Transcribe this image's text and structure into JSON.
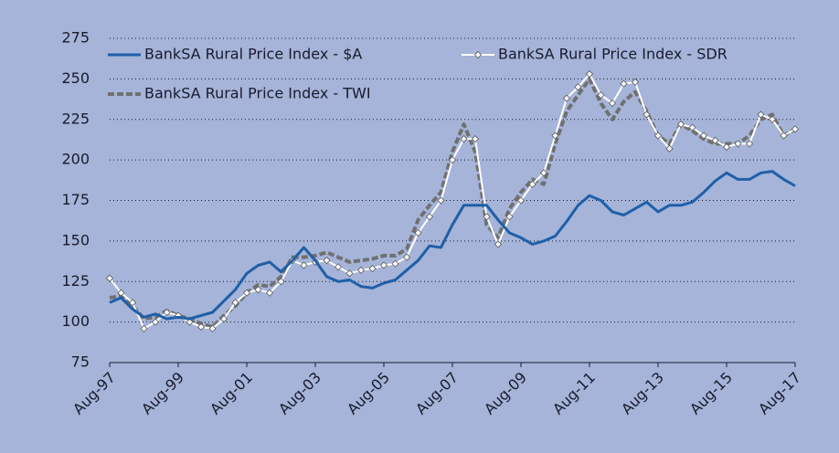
{
  "chart_data": {
    "type": "line",
    "categories": [
      "Aug-97",
      null,
      null,
      null,
      null,
      null,
      "Aug-99",
      null,
      null,
      null,
      null,
      null,
      "Aug-01",
      null,
      null,
      null,
      null,
      null,
      "Aug-03",
      null,
      null,
      null,
      null,
      null,
      "Aug-05",
      null,
      null,
      null,
      null,
      null,
      "Aug-07",
      null,
      null,
      null,
      null,
      null,
      "Aug-09",
      null,
      null,
      null,
      null,
      null,
      "Aug-11",
      null,
      null,
      null,
      null,
      null,
      "Aug-13",
      null,
      null,
      null,
      null,
      null,
      "Aug-15",
      null,
      null,
      null,
      null,
      null,
      "Aug-17"
    ],
    "series": [
      {
        "name": "BankSA Rural Price Index - $A",
        "color": "#1f5fa8",
        "style": "solid",
        "values": [
          112,
          115,
          108,
          103,
          105,
          102,
          103,
          102,
          104,
          106,
          113,
          120,
          130,
          135,
          137,
          131,
          138,
          146,
          138,
          128,
          125,
          126,
          122,
          121,
          124,
          126,
          132,
          138,
          147,
          146,
          160,
          172,
          172,
          172,
          163,
          155,
          152,
          148,
          150,
          153,
          162,
          172,
          178,
          175,
          168,
          166,
          170,
          174,
          168,
          172,
          172,
          174,
          180,
          187,
          192,
          188,
          188,
          192,
          193,
          188,
          184
        ]
      },
      {
        "name": "BankSA Rural Price Index - SDR",
        "color": "#ffffff",
        "style": "marker",
        "values": [
          127,
          118,
          112,
          96,
          100,
          106,
          104,
          100,
          97,
          96,
          102,
          112,
          118,
          120,
          118,
          125,
          138,
          135,
          137,
          138,
          134,
          130,
          132,
          133,
          135,
          136,
          140,
          155,
          165,
          175,
          200,
          213,
          213,
          165,
          148,
          165,
          175,
          185,
          192,
          215,
          238,
          245,
          253,
          240,
          235,
          247,
          248,
          228,
          215,
          207,
          222,
          220,
          215,
          212,
          208,
          210,
          210,
          228,
          225,
          215,
          219
        ]
      },
      {
        "name": "BankSA Rural Price Index - TWI",
        "color": "#707070",
        "style": "dashed",
        "values": [
          115,
          116,
          110,
          102,
          103,
          107,
          104,
          102,
          99,
          97,
          104,
          110,
          118,
          123,
          122,
          128,
          140,
          140,
          141,
          143,
          140,
          137,
          138,
          139,
          141,
          141,
          145,
          163,
          172,
          180,
          205,
          222,
          205,
          160,
          152,
          170,
          180,
          188,
          185,
          210,
          230,
          240,
          250,
          235,
          225,
          236,
          242,
          230,
          215,
          210,
          222,
          218,
          213,
          210,
          210,
          210,
          215,
          225,
          228,
          215,
          219
        ]
      }
    ],
    "ylim": [
      75,
      275
    ],
    "yticks": [
      75,
      100,
      125,
      150,
      175,
      200,
      225,
      250,
      275
    ],
    "grid": true,
    "legend": "top"
  }
}
